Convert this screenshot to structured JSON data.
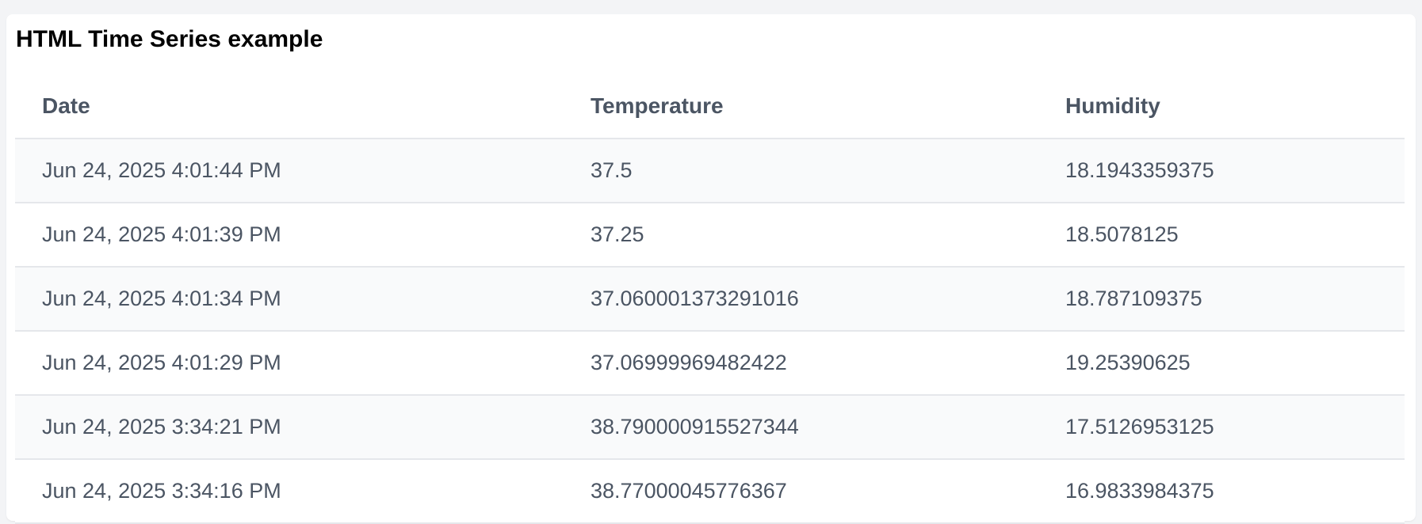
{
  "card": {
    "title": "HTML Time Series example"
  },
  "table": {
    "headers": {
      "date": "Date",
      "temperature": "Temperature",
      "humidity": "Humidity"
    },
    "rows": [
      {
        "date": "Jun 24, 2025 4:01:44 PM",
        "temperature": "37.5",
        "humidity": "18.1943359375"
      },
      {
        "date": "Jun 24, 2025 4:01:39 PM",
        "temperature": "37.25",
        "humidity": "18.5078125"
      },
      {
        "date": "Jun 24, 2025 4:01:34 PM",
        "temperature": "37.060001373291016",
        "humidity": "18.787109375"
      },
      {
        "date": "Jun 24, 2025 4:01:29 PM",
        "temperature": "37.06999969482422",
        "humidity": "19.25390625"
      },
      {
        "date": "Jun 24, 2025 3:34:21 PM",
        "temperature": "38.790000915527344",
        "humidity": "17.5126953125"
      },
      {
        "date": "Jun 24, 2025 3:34:16 PM",
        "temperature": "38.77000045776367",
        "humidity": "16.9833984375"
      }
    ]
  }
}
